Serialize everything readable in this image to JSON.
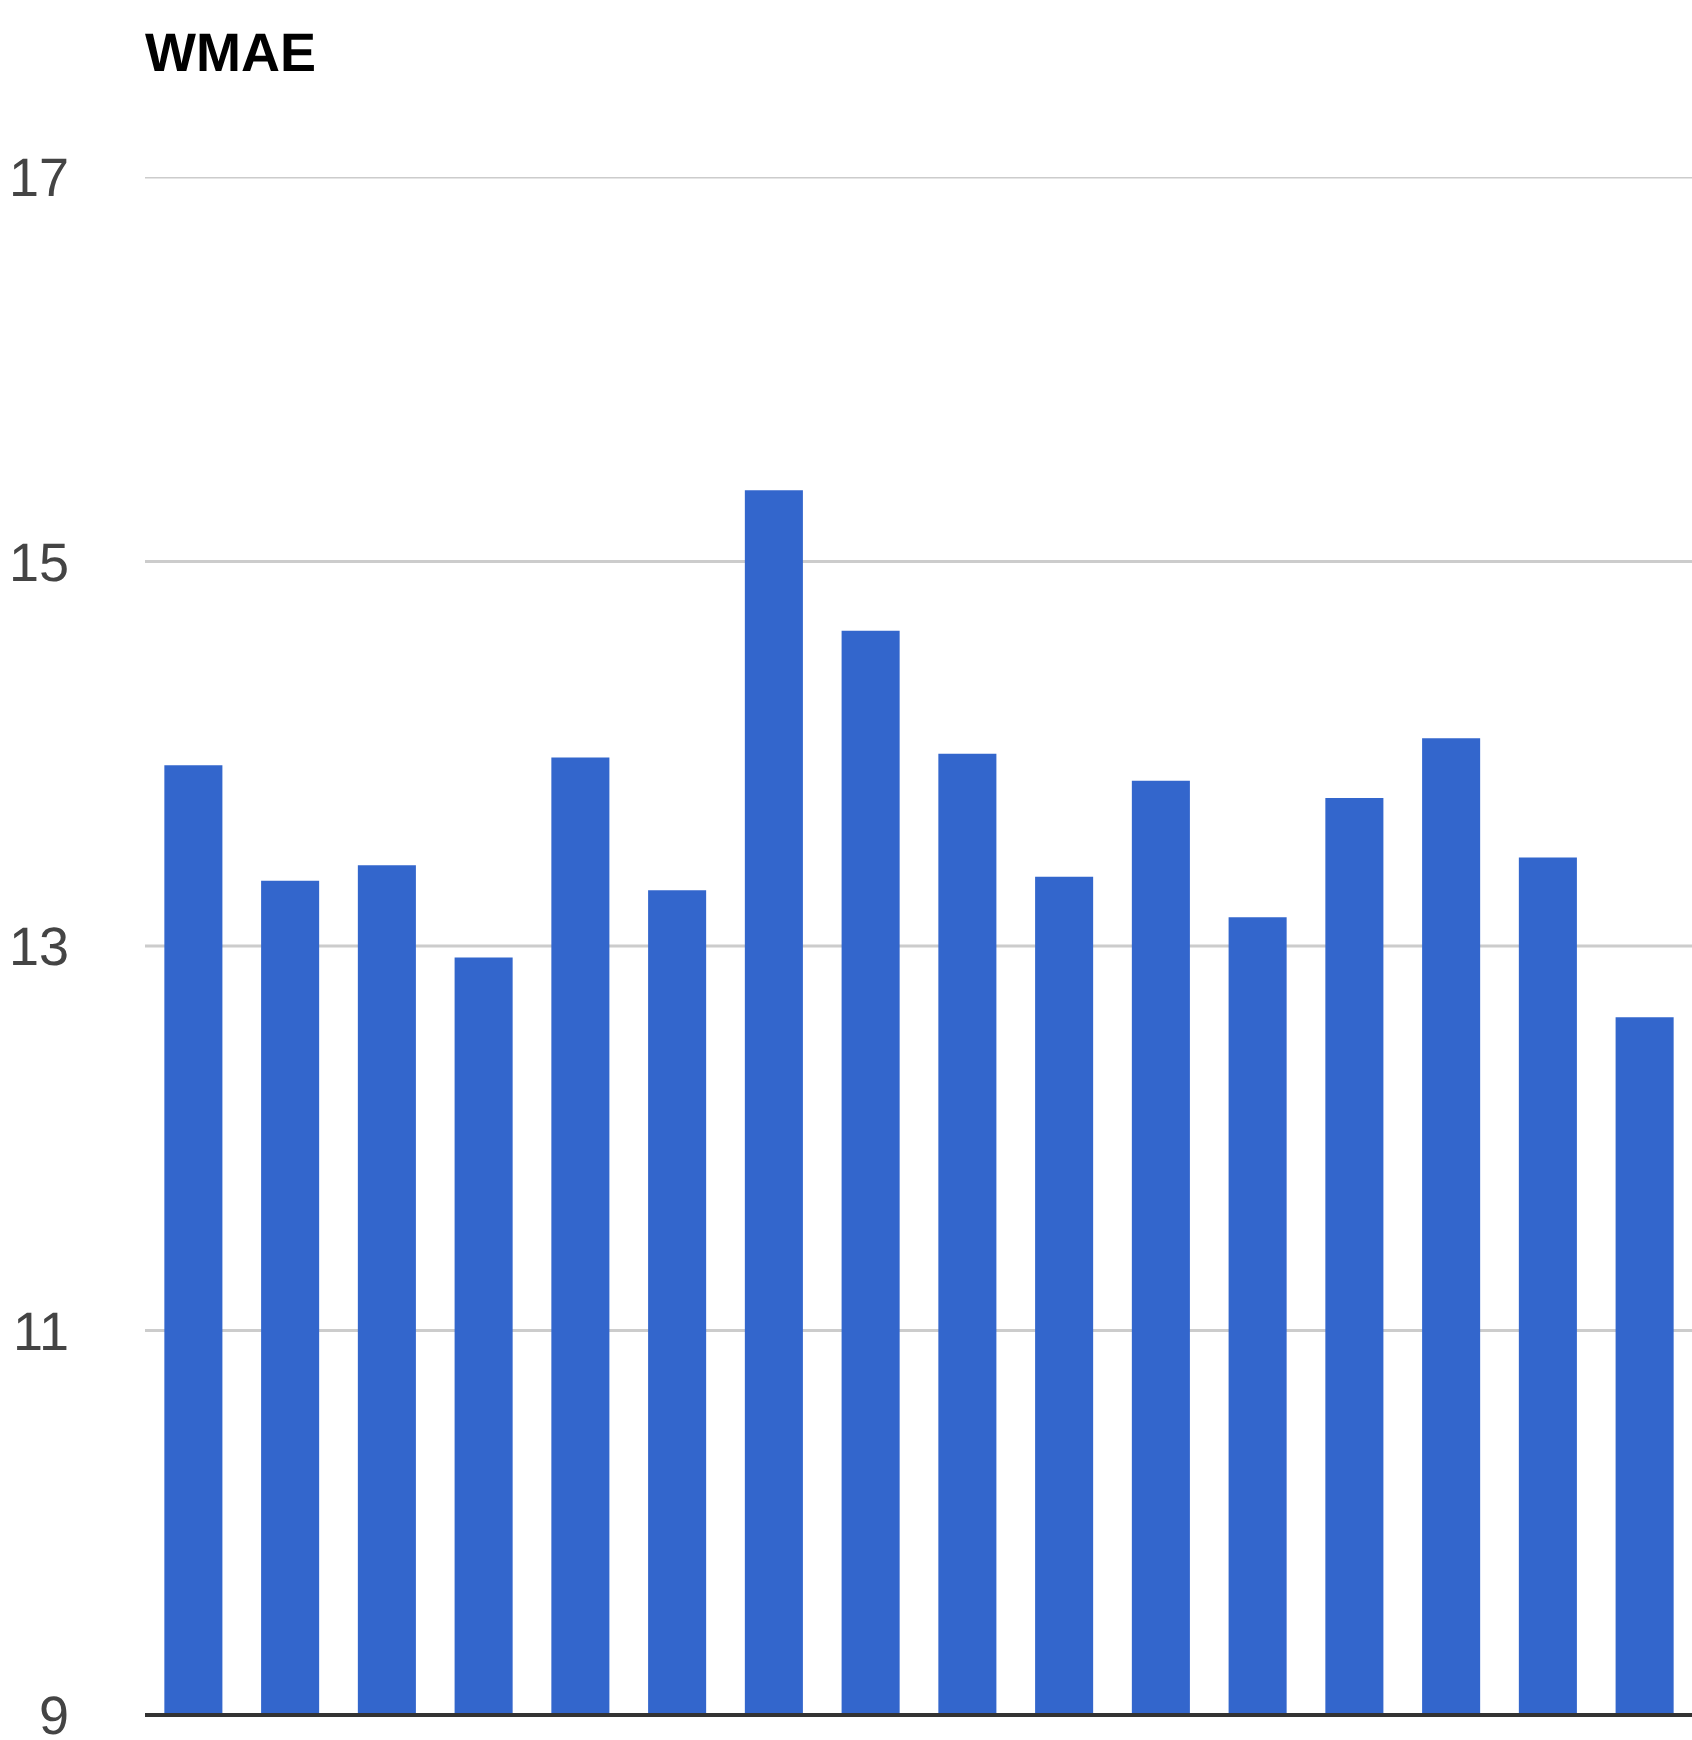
{
  "chart_data": {
    "type": "bar",
    "title": "WMAE",
    "categories": [
      null,
      null,
      null,
      null,
      null,
      null,
      null,
      null,
      null,
      null,
      null,
      null,
      null,
      null,
      null,
      null
    ],
    "values": [
      13.94,
      13.34,
      13.42,
      12.94,
      13.98,
      13.29,
      15.37,
      14.64,
      14.0,
      13.36,
      13.86,
      13.15,
      13.77,
      14.08,
      13.46,
      12.63
    ],
    "color": "#3366cc",
    "ylim": [
      9,
      17
    ],
    "yticks": [
      9,
      11,
      13,
      15,
      17
    ],
    "grid": "y",
    "tick_labels": "y"
  }
}
